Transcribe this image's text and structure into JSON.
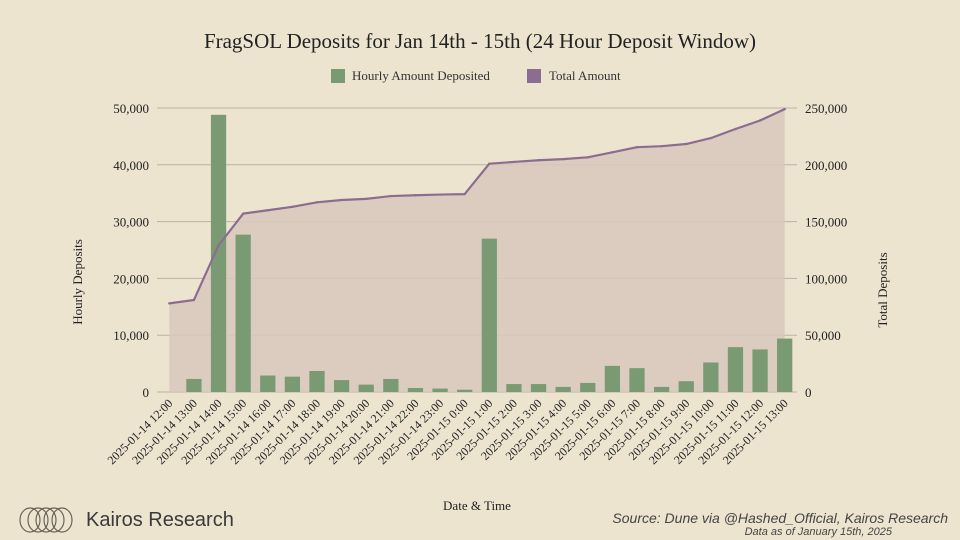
{
  "colors": {
    "background": "#ede4d0",
    "bar": "#7a9a74",
    "line": "#8a6d91",
    "area": "#d8c8bd",
    "grid": "#bcb29f",
    "text": "#222222"
  },
  "brand": {
    "name": "Kairos Research"
  },
  "footer": {
    "source": "Source: Dune via @Hashed_Official, Kairos Research",
    "as_of": "Data as of January 15th, 2025"
  },
  "chart_data": {
    "type": "bar",
    "title": "FragSOL Deposits for Jan 14th - 15th (24 Hour Deposit Window)",
    "xlabel": "Date & Time",
    "ylabel": "Hourly Deposits",
    "ylabel_right": "Total Deposits",
    "ylim": [
      0,
      50000
    ],
    "ylim_right": [
      0,
      250000
    ],
    "yticks": [
      "0",
      "10,000",
      "20,000",
      "30,000",
      "40,000",
      "50,000"
    ],
    "yticks_right": [
      "0",
      "50,000",
      "100,000",
      "150,000",
      "200,000",
      "250,000"
    ],
    "grid": true,
    "legend_position": "top-center",
    "categories": [
      "2025-01-14 12:00",
      "2025-01-14 13:00",
      "2025-01-14 14:00",
      "2025-01-14 15:00",
      "2025-01-14 16:00",
      "2025-01-14 17:00",
      "2025-01-14 18:00",
      "2025-01-14 19:00",
      "2025-01-14 20:00",
      "2025-01-14 21:00",
      "2025-01-14 22:00",
      "2025-01-14 23:00",
      "2025-01-15 0:00",
      "2025-01-15 1:00",
      "2025-01-15 2:00",
      "2025-01-15 3:00",
      "2025-01-15 4:00",
      "2025-01-15 5:00",
      "2025-01-15 6:00",
      "2025-01-15 7:00",
      "2025-01-15 8:00",
      "2025-01-15 9:00",
      "2025-01-15 10:00",
      "2025-01-15 11:00",
      "2025-01-15 12:00",
      "2025-01-15 13:00"
    ],
    "series": [
      {
        "name": "Hourly Amount Deposited",
        "type": "bar",
        "axis": "left",
        "values": [
          0,
          2300,
          48800,
          27700,
          2900,
          2700,
          3700,
          2100,
          1300,
          2300,
          700,
          600,
          400,
          27000,
          1400,
          1400,
          900,
          1600,
          4600,
          4200,
          900,
          1900,
          5200,
          7900,
          7500,
          9400
        ]
      },
      {
        "name": "Total Amount",
        "type": "line",
        "axis": "right",
        "values": [
          78000,
          81000,
          129000,
          157000,
          160000,
          163000,
          167000,
          169000,
          170000,
          172500,
          173200,
          173800,
          174200,
          201000,
          202500,
          204000,
          205000,
          206600,
          211000,
          215500,
          216400,
          218300,
          223500,
          231500,
          239000,
          249000
        ]
      }
    ]
  }
}
